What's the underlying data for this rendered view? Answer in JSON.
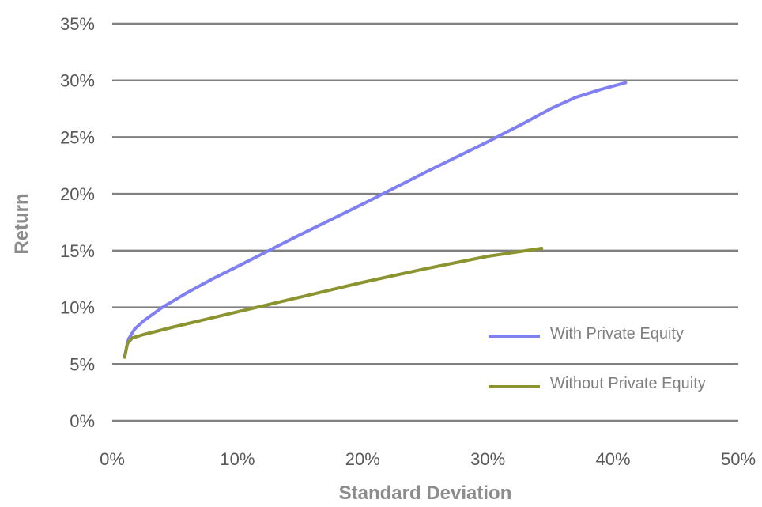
{
  "chart_data": {
    "type": "line",
    "xlabel": "Standard Deviation",
    "ylabel": "Return",
    "xlim": [
      0,
      50
    ],
    "ylim": [
      0,
      35
    ],
    "x_ticks": [
      "0%",
      "10%",
      "20%",
      "30%",
      "40%",
      "50%"
    ],
    "y_ticks": [
      "0%",
      "5%",
      "10%",
      "15%",
      "20%",
      "25%",
      "30%",
      "35%"
    ],
    "x_tick_values": [
      0,
      10,
      20,
      30,
      40,
      50
    ],
    "y_tick_values": [
      0,
      5,
      10,
      15,
      20,
      25,
      30,
      35
    ],
    "grid": "horizontal",
    "legend": "bottom-right",
    "series": [
      {
        "name": "With Private Equity",
        "color": "#8080f0",
        "points": [
          [
            1.0,
            5.7
          ],
          [
            1.3,
            7.2
          ],
          [
            1.8,
            8.1
          ],
          [
            2.5,
            8.8
          ],
          [
            4,
            10.0
          ],
          [
            6,
            11.3
          ],
          [
            8,
            12.5
          ],
          [
            10,
            13.6
          ],
          [
            12.5,
            15.0
          ],
          [
            15,
            16.4
          ],
          [
            20,
            19.1
          ],
          [
            25,
            21.9
          ],
          [
            30,
            24.6
          ],
          [
            33,
            26.3
          ],
          [
            35,
            27.5
          ],
          [
            37,
            28.5
          ],
          [
            39,
            29.2
          ],
          [
            41,
            29.8
          ]
        ]
      },
      {
        "name": "Without Private Equity",
        "color": "#8c9430",
        "points": [
          [
            1.0,
            5.6
          ],
          [
            1.2,
            6.8
          ],
          [
            1.6,
            7.3
          ],
          [
            2.5,
            7.6
          ],
          [
            5,
            8.3
          ],
          [
            10,
            9.6
          ],
          [
            15,
            10.9
          ],
          [
            20,
            12.2
          ],
          [
            25,
            13.4
          ],
          [
            30,
            14.5
          ],
          [
            34.3,
            15.2
          ]
        ]
      }
    ]
  }
}
